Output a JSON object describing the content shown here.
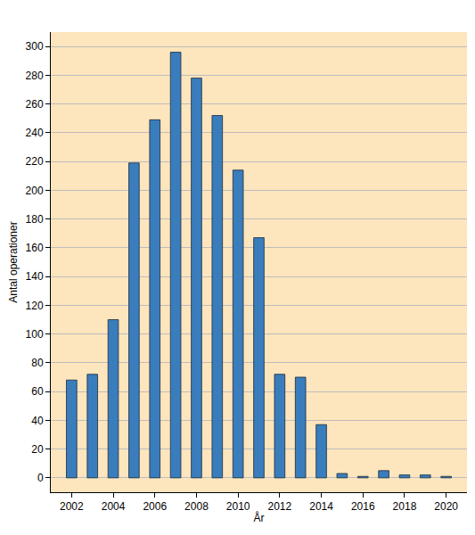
{
  "chart_data": {
    "type": "bar",
    "x": [
      2002,
      2003,
      2004,
      2005,
      2006,
      2007,
      2008,
      2009,
      2010,
      2011,
      2012,
      2013,
      2014,
      2015,
      2016,
      2017,
      2018,
      2019,
      2020
    ],
    "values": [
      68,
      72,
      110,
      219,
      249,
      296,
      278,
      252,
      214,
      167,
      72,
      70,
      37,
      3,
      1,
      5,
      2,
      2,
      1
    ],
    "color": "#3a7dbd",
    "x_label": "År",
    "y_label": "Antal operationer",
    "xlim": [
      2001,
      2021
    ],
    "xticks": [
      2002,
      2004,
      2006,
      2008,
      2010,
      2012,
      2014,
      2016,
      2018,
      2020
    ],
    "ylim": [
      -10,
      310
    ],
    "yticks": [
      0,
      20,
      40,
      60,
      80,
      100,
      120,
      140,
      160,
      180,
      200,
      220,
      240,
      260,
      280,
      300
    ],
    "grid": true
  }
}
